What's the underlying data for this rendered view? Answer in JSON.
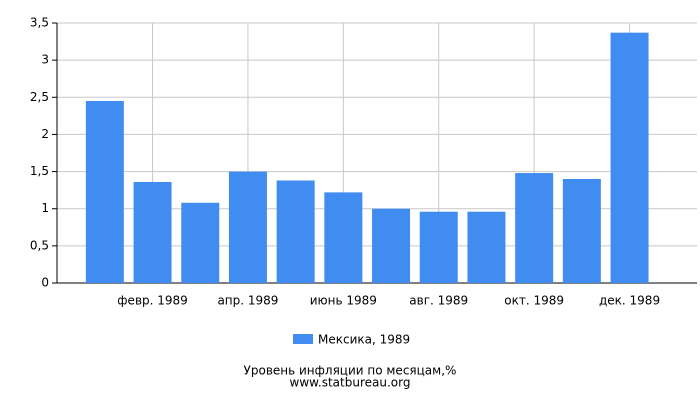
{
  "chart_data": {
    "type": "bar",
    "title": "Уровень инфляции по месяцам,%",
    "subtitle": "www.statbureau.org",
    "categories": [
      null,
      "февр. 1989",
      null,
      "апр. 1989",
      null,
      "июнь 1989",
      null,
      "авг. 1989",
      null,
      "окт. 1989",
      null,
      "дек. 1989"
    ],
    "series": [
      {
        "name": "Мексика, 1989",
        "color": "#418cf0",
        "values": [
          2.45,
          1.36,
          1.08,
          1.5,
          1.38,
          1.22,
          1.0,
          0.96,
          0.96,
          1.48,
          1.4,
          3.37
        ]
      }
    ],
    "ylim": [
      0,
      3.5
    ],
    "yticks": [
      0,
      {
        "value": 0.5,
        "label": "0,5"
      },
      1,
      {
        "value": 1.5,
        "label": "1,5"
      },
      2,
      {
        "value": 2.5,
        "label": "2,5"
      },
      3,
      {
        "value": 3.5,
        "label": "3,5"
      }
    ],
    "grid": true
  }
}
